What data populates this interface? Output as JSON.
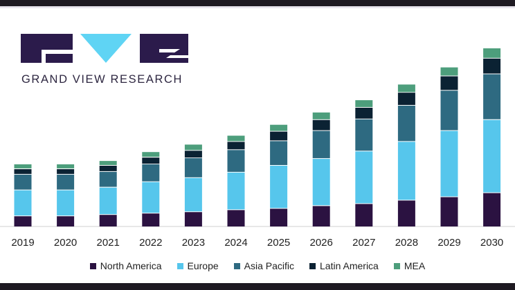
{
  "brand": {
    "name": "GRAND VIEW RESEARCH",
    "logo_color": "#2b1b4b",
    "logo_accent": "#5fd4f4"
  },
  "chart_data": {
    "type": "bar",
    "stacked": true,
    "title": "",
    "xlabel": "",
    "ylabel": "",
    "grid": false,
    "legend": "bottom",
    "categories": [
      "2019",
      "2020",
      "2021",
      "2022",
      "2023",
      "2024",
      "2025",
      "2026",
      "2027",
      "2028",
      "2029",
      "2030"
    ],
    "series": [
      {
        "name": "North America",
        "color": "#2b1241",
        "values": [
          16,
          16,
          18,
          20,
          22,
          25,
          27,
          31,
          34,
          39,
          44,
          50
        ]
      },
      {
        "name": "Europe",
        "color": "#56c6ec",
        "values": [
          38,
          38,
          40,
          46,
          50,
          55,
          63,
          69,
          77,
          86,
          97,
          107
        ]
      },
      {
        "name": "Asia Pacific",
        "color": "#2e6a81",
        "values": [
          23,
          23,
          23,
          26,
          29,
          33,
          36,
          41,
          47,
          53,
          59,
          67
        ]
      },
      {
        "name": "Latin America",
        "color": "#0b2233",
        "values": [
          8,
          8,
          9,
          10,
          11,
          12,
          14,
          16,
          17,
          19,
          21,
          23
        ]
      },
      {
        "name": "MEA",
        "color": "#4d9e7c",
        "values": [
          7,
          7,
          7,
          8,
          9,
          9,
          10,
          11,
          11,
          12,
          13,
          15
        ]
      }
    ],
    "ylim": [
      0,
      265
    ]
  }
}
